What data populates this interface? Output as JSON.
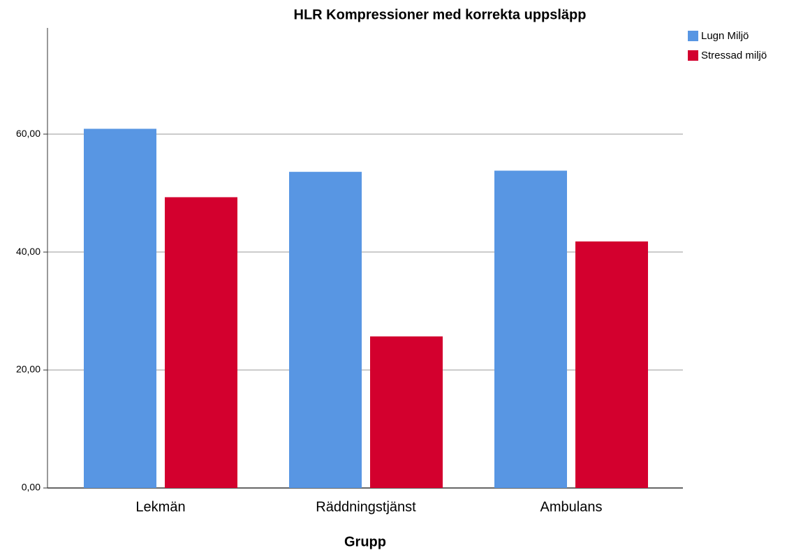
{
  "chart_data": {
    "type": "bar",
    "title": "HLR Kompressioner med korrekta uppsläpp",
    "x_label": "Grupp",
    "categories": [
      "Lekmän",
      "Räddningstjänst",
      "Ambulans"
    ],
    "series": [
      {
        "name": "Lugn Miljö",
        "color": "#5896e3",
        "values": [
          60.9,
          53.6,
          53.8
        ]
      },
      {
        "name": "Stressad miljö",
        "color": "#d3002e",
        "values": [
          49.3,
          25.7,
          41.8
        ]
      }
    ],
    "ylim": [
      0,
      78
    ],
    "yticks": [
      {
        "value": 0,
        "label": "0,00"
      },
      {
        "value": 20,
        "label": "20,00"
      },
      {
        "value": 40,
        "label": "40,00"
      },
      {
        "value": 60,
        "label": "60,00"
      }
    ],
    "grid": true,
    "legend": "top-right"
  }
}
